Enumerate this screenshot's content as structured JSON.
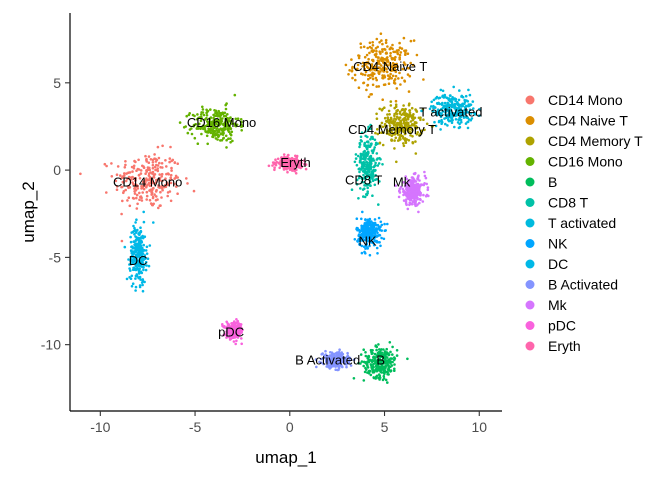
{
  "chart_data": {
    "type": "scatter",
    "xlabel": "umap_1",
    "ylabel": "umap_2",
    "xlim": [
      -11.6,
      11.2
    ],
    "ylim": [
      -13.8,
      9.0
    ],
    "x_ticks": [
      -10,
      -5,
      0,
      5,
      10
    ],
    "y_ticks": [
      -10,
      -5,
      0,
      5
    ],
    "x_tick_labels": [
      "-10",
      "-5",
      "0",
      "5",
      "10"
    ],
    "y_tick_labels": [
      "-10",
      "-5",
      "0",
      "5"
    ],
    "grid": false,
    "legend_position": "right",
    "series": [
      {
        "name": "CD14 Mono",
        "color": "#F8766D",
        "label": "CD14 Mono",
        "center": [
          -7.5,
          -0.6
        ],
        "spread": [
          1.6,
          1.5
        ],
        "label_pos": [
          -7.5,
          -0.7
        ]
      },
      {
        "name": "CD4 Naive T",
        "color": "#DB8E00",
        "label": "CD4 Naive T",
        "center": [
          4.9,
          6.0
        ],
        "spread": [
          1.4,
          1.3
        ],
        "label_pos": [
          5.3,
          5.9
        ]
      },
      {
        "name": "CD4 Memory T",
        "color": "#AEA200",
        "label": "CD4 Memory T",
        "center": [
          5.9,
          2.6
        ],
        "spread": [
          1.0,
          1.0
        ],
        "label_pos": [
          5.4,
          2.3
        ]
      },
      {
        "name": "CD16 Mono",
        "color": "#64B200",
        "label": "CD16 Mono",
        "center": [
          -3.9,
          2.6
        ],
        "spread": [
          1.1,
          0.9
        ],
        "label_pos": [
          -3.6,
          2.7
        ]
      },
      {
        "name": "B",
        "color": "#00BD5C",
        "label": "B",
        "center": [
          4.8,
          -11.0
        ],
        "spread": [
          0.8,
          0.8
        ],
        "label_pos": [
          4.8,
          -10.9
        ]
      },
      {
        "name": "CD8 T",
        "color": "#00C1A7",
        "label": "CD8 T",
        "center": [
          4.1,
          0.4
        ],
        "spread": [
          0.5,
          1.5
        ],
        "label_pos": [
          3.9,
          -0.6
        ]
      },
      {
        "name": "T activated",
        "color": "#00BADE",
        "label": "T activated",
        "center": [
          8.6,
          3.5
        ],
        "spread": [
          1.0,
          0.8
        ],
        "label_pos": [
          8.5,
          3.3
        ]
      },
      {
        "name": "NK",
        "color": "#00A6FF",
        "label": "NK",
        "center": [
          4.2,
          -3.6
        ],
        "spread": [
          0.6,
          0.8
        ],
        "label_pos": [
          4.1,
          -4.1
        ]
      },
      {
        "name": "DC",
        "color": "#00B8E7",
        "label": "DC",
        "center": [
          -8.0,
          -4.8
        ],
        "spread": [
          0.4,
          1.5
        ],
        "label_pos": [
          -8.0,
          -5.2
        ]
      },
      {
        "name": "B Activated",
        "color": "#8494FF",
        "label": "B Activated",
        "center": [
          2.4,
          -10.9
        ],
        "spread": [
          0.6,
          0.4
        ],
        "label_pos": [
          2.0,
          -10.9
        ]
      },
      {
        "name": "Mk",
        "color": "#D575FE",
        "label": "Mk",
        "center": [
          6.5,
          -1.2
        ],
        "spread": [
          0.6,
          0.7
        ],
        "label_pos": [
          5.9,
          -0.7
        ]
      },
      {
        "name": "pDC",
        "color": "#F962DD",
        "label": "pDC",
        "center": [
          -2.9,
          -9.2
        ],
        "spread": [
          0.4,
          0.4
        ],
        "label_pos": [
          -3.1,
          -9.3
        ]
      },
      {
        "name": "Eryth",
        "color": "#FF65AC",
        "label": "Eryth",
        "center": [
          0.0,
          0.4
        ],
        "spread": [
          0.6,
          0.3
        ],
        "label_pos": [
          0.3,
          0.4
        ]
      }
    ]
  }
}
